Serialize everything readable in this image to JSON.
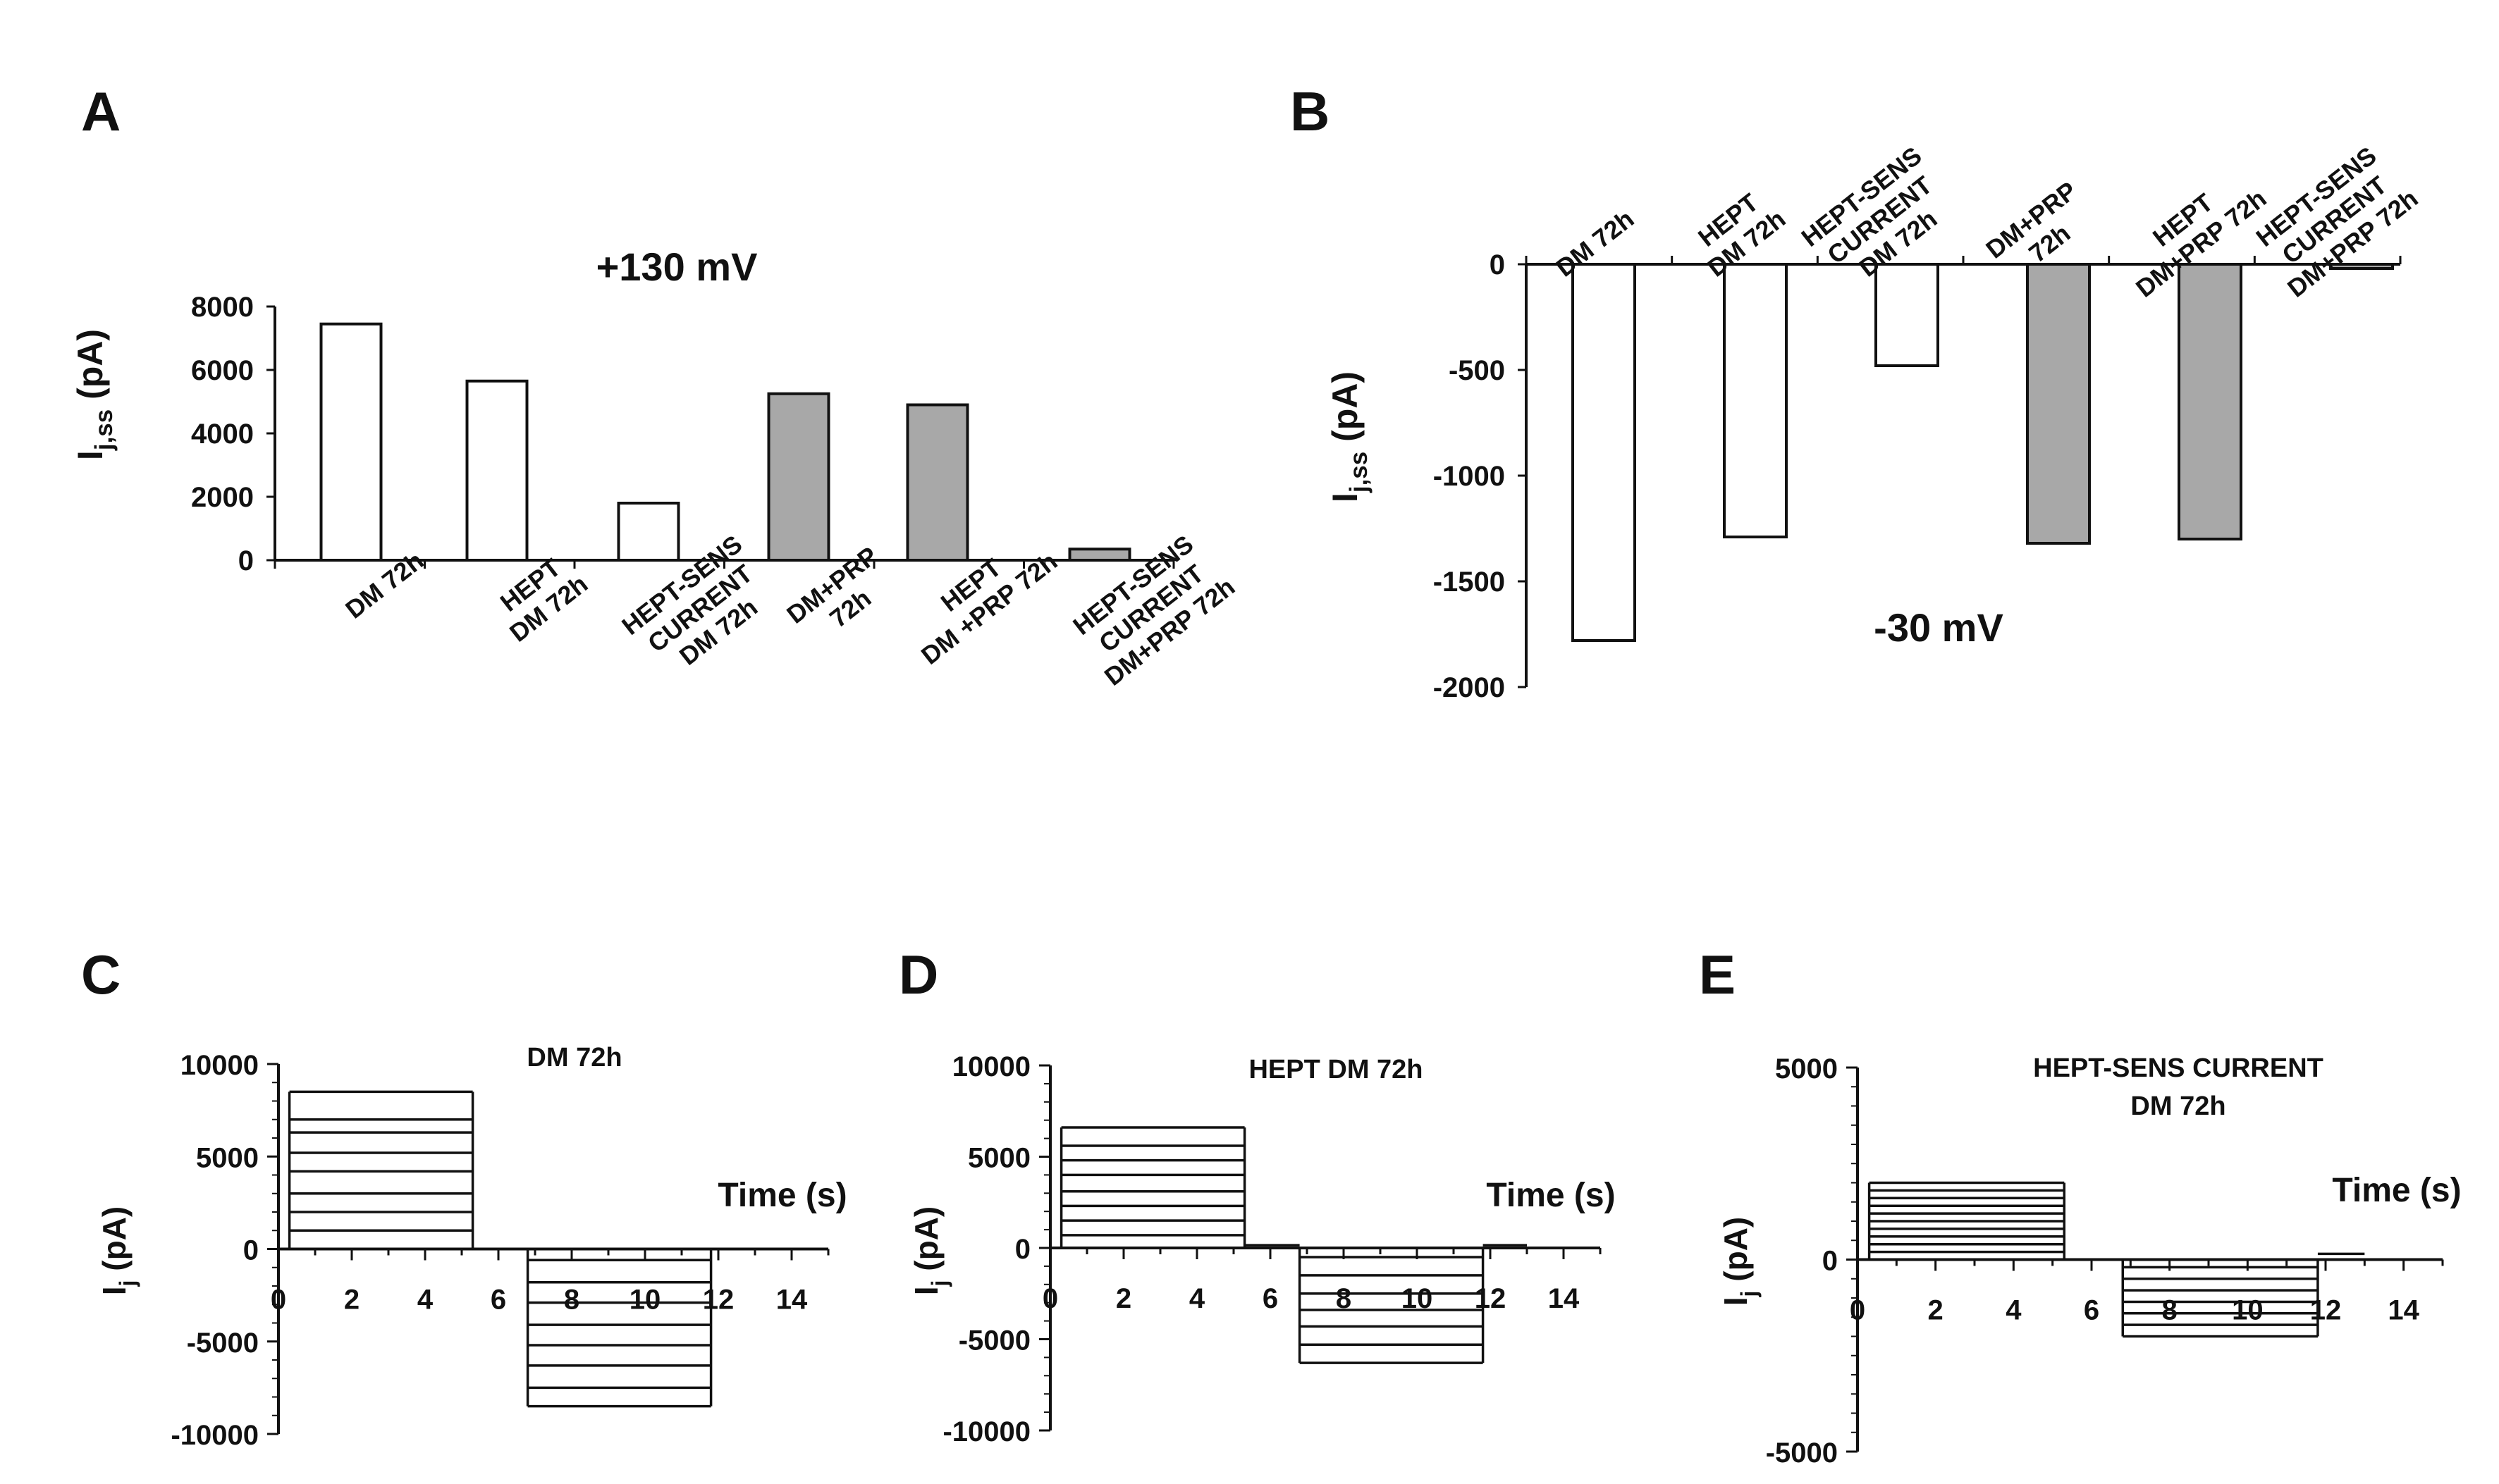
{
  "chart_data": [
    {
      "panel": "A",
      "type": "bar",
      "title": "+130 mV",
      "ylabel": "I",
      "ylabel_sub": "j,ss",
      "ylabel_unit": " (pA)",
      "ylim": [
        0,
        8000
      ],
      "yticks": [
        "0",
        "2000",
        "4000",
        "6000",
        "8000"
      ],
      "categories": [
        [
          "DM 72h"
        ],
        [
          "HEPT",
          "DM 72h"
        ],
        [
          "HEPT-SENS",
          "CURRENT",
          "DM 72h"
        ],
        [
          "DM+PRP",
          "72h"
        ],
        [
          "HEPT",
          "DM +PRP 72h"
        ],
        [
          "HEPT-SENS",
          "CURRENT",
          "DM+PRP 72h"
        ]
      ],
      "values": [
        7450,
        5650,
        1800,
        5250,
        4900,
        350
      ],
      "bar_colors": [
        "#ffffff",
        "#ffffff",
        "#ffffff",
        "#a8a8a8",
        "#a8a8a8",
        "#a8a8a8"
      ]
    },
    {
      "panel": "B",
      "type": "bar",
      "title": "-30 mV",
      "ylabel": "I",
      "ylabel_sub": "j,ss",
      "ylabel_unit": " (pA)",
      "ylim": [
        -2000,
        0
      ],
      "yticks": [
        "0",
        "-500",
        "-1000",
        "-1500",
        "-2000"
      ],
      "categories": [
        [
          "DM 72h"
        ],
        [
          "HEPT",
          "DM 72h"
        ],
        [
          "HEPT-SENS",
          "CURRENT",
          "DM 72h"
        ],
        [
          "DM+PRP",
          "72h"
        ],
        [
          "HEPT",
          "DM+PRP 72h"
        ],
        [
          "HEPT-SENS",
          "CURRENT",
          "DM+PRP 72h"
        ]
      ],
      "values": [
        -1780,
        -1290,
        -480,
        -1320,
        -1300,
        -20
      ],
      "bar_colors": [
        "#ffffff",
        "#ffffff",
        "#ffffff",
        "#a8a8a8",
        "#a8a8a8",
        "#a8a8a8"
      ]
    },
    {
      "panel": "C",
      "type": "line",
      "title": "DM 72h",
      "xlabel": "Time (s)",
      "ylabel": "I",
      "ylabel_sub": "j",
      "ylabel_unit": " (pA)",
      "xlim": [
        0,
        15
      ],
      "ylim": [
        -10000,
        10000
      ],
      "xticks": [
        "0",
        "2",
        "4",
        "6",
        "8",
        "10",
        "12",
        "14"
      ],
      "yticks": [
        "10000",
        "5000",
        "0",
        "-5000",
        "-10000"
      ],
      "pulse1": {
        "t_start": 0.3,
        "t_end": 5.3,
        "levels": [
          8500,
          7000,
          6300,
          5200,
          4200,
          3000,
          2000,
          1000,
          0
        ]
      },
      "pulse2": {
        "t_start": 6.8,
        "t_end": 11.8,
        "levels": [
          -600,
          -1800,
          -2900,
          -4100,
          -5200,
          -6300,
          -7500,
          -8500
        ]
      },
      "tails": [
        [
          5.3,
          6.8,
          0
        ],
        [
          11.8,
          13.0,
          0
        ]
      ]
    },
    {
      "panel": "D",
      "type": "line",
      "title": "HEPT  DM 72h",
      "xlabel": "Time (s)",
      "ylabel": "I",
      "ylabel_sub": "j",
      "ylabel_unit": " (pA)",
      "xlim": [
        0,
        15
      ],
      "ylim": [
        -10000,
        10000
      ],
      "xticks": [
        "0",
        "2",
        "4",
        "6",
        "8",
        "10",
        "12",
        "14"
      ],
      "yticks": [
        "10000",
        "5000",
        "0",
        "-5000",
        "-10000"
      ],
      "pulse1": {
        "t_start": 0.3,
        "t_end": 5.3,
        "levels": [
          6600,
          5600,
          4800,
          4000,
          3100,
          2300,
          1500,
          700,
          0
        ]
      },
      "pulse2": {
        "t_start": 6.8,
        "t_end": 11.8,
        "levels": [
          -500,
          -1500,
          -2500,
          -3400,
          -4300,
          -5300,
          -6300
        ]
      },
      "tails": [
        [
          5.3,
          6.8,
          150
        ],
        [
          11.8,
          13.0,
          150
        ]
      ]
    },
    {
      "panel": "E",
      "type": "line",
      "title": "HEPT-SENS CURRENT",
      "subtitle": "DM  72h",
      "xlabel": "Time (s)",
      "ylabel": "I",
      "ylabel_sub": "j",
      "ylabel_unit": " (pA)",
      "xlim": [
        0,
        15
      ],
      "ylim": [
        -5000,
        5000
      ],
      "xticks": [
        "0",
        "2",
        "4",
        "6",
        "8",
        "10",
        "12",
        "14"
      ],
      "yticks": [
        "5000",
        "0",
        "-5000"
      ],
      "pulse1": {
        "t_start": 0.3,
        "t_end": 5.3,
        "levels": [
          2000,
          1800,
          1600,
          1400,
          1200,
          1000,
          800,
          600,
          400,
          200,
          0
        ]
      },
      "pulse2": {
        "t_start": 6.8,
        "t_end": 11.8,
        "levels": [
          -200,
          -500,
          -800,
          -1100,
          -1400,
          -1700,
          -2000
        ]
      },
      "tails": [
        [
          5.3,
          6.8,
          0
        ],
        [
          11.8,
          13.0,
          150
        ]
      ]
    }
  ]
}
